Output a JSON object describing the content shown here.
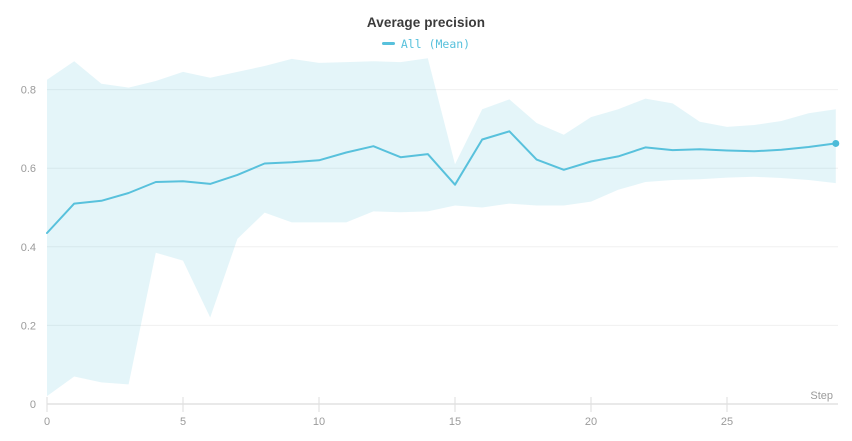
{
  "header": {
    "title": "Average precision"
  },
  "legend": {
    "label": "All (Mean)",
    "color": "#58c1dc"
  },
  "chart_data": {
    "type": "line",
    "title": "Average precision",
    "xlabel": "Step",
    "ylabel": "",
    "legend_position": "top-center",
    "grid": true,
    "xlim": [
      0,
      29.1
    ],
    "ylim": [
      0,
      0.89
    ],
    "x_ticks": [
      0,
      5,
      10,
      15,
      20,
      25
    ],
    "x_tick_labels": [
      "0",
      "5",
      "10",
      "15",
      "20",
      "25"
    ],
    "y_ticks": [
      0,
      0.2,
      0.4,
      0.6,
      0.8
    ],
    "y_tick_labels": [
      "0",
      "0.2",
      "0.4",
      "0.6",
      "0.8"
    ],
    "x": [
      0,
      1,
      2,
      3,
      4,
      5,
      6,
      7,
      8,
      9,
      10,
      11,
      12,
      13,
      14,
      15,
      16,
      17,
      18,
      19,
      20,
      21,
      22,
      23,
      24,
      25,
      26,
      27,
      28,
      29
    ],
    "series": [
      {
        "name": "All (Mean)",
        "mean": [
          0.435,
          0.51,
          0.517,
          0.537,
          0.565,
          0.567,
          0.56,
          0.583,
          0.612,
          0.615,
          0.62,
          0.64,
          0.656,
          0.628,
          0.636,
          0.558,
          0.673,
          0.694,
          0.622,
          0.596,
          0.617,
          0.63,
          0.653,
          0.646,
          0.648,
          0.645,
          0.643,
          0.647,
          0.654,
          0.663
        ],
        "band_upper": [
          0.825,
          0.872,
          0.815,
          0.805,
          0.822,
          0.845,
          0.83,
          0.845,
          0.86,
          0.878,
          0.868,
          0.87,
          0.872,
          0.87,
          0.88,
          0.61,
          0.75,
          0.775,
          0.715,
          0.685,
          0.73,
          0.75,
          0.777,
          0.765,
          0.718,
          0.705,
          0.71,
          0.72,
          0.74,
          0.75
        ],
        "band_lower": [
          0.02,
          0.07,
          0.055,
          0.05,
          0.385,
          0.365,
          0.22,
          0.42,
          0.487,
          0.462,
          0.462,
          0.462,
          0.49,
          0.488,
          0.49,
          0.505,
          0.5,
          0.51,
          0.505,
          0.505,
          0.515,
          0.545,
          0.565,
          0.57,
          0.572,
          0.576,
          0.578,
          0.575,
          0.57,
          0.562
        ],
        "end_marker": true
      }
    ],
    "colors": {
      "line": "#58c1dc",
      "marker": "#4dbbd8",
      "band_fill": "#58c1dc",
      "band_opacity": 0.16,
      "grid_line": "#f0f0f0",
      "axis_line": "#e9e9e9",
      "tick_mark": "#dedede",
      "tick_label": "#9b9b9b",
      "title": "#3b3b3b"
    }
  }
}
